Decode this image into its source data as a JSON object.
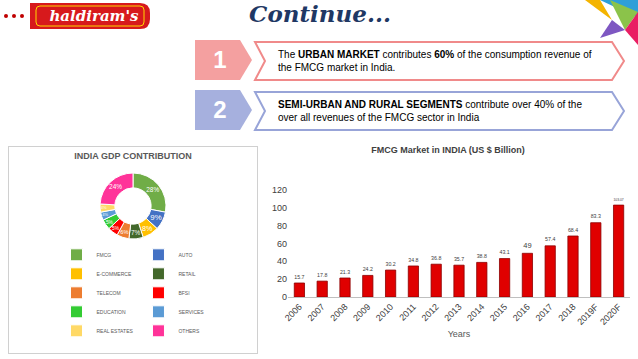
{
  "header": {
    "logo": "haldiram's",
    "title": "Continue..."
  },
  "points": [
    {
      "number": "1",
      "segments": [
        {
          "text": "The ",
          "bold": false
        },
        {
          "text": "URBAN MARKET",
          "bold": true
        },
        {
          "text": " contributes ",
          "bold": false
        },
        {
          "text": "60%",
          "bold": true
        },
        {
          "text": " of the consumption revenue of the FMCG market in India.",
          "bold": false
        }
      ]
    },
    {
      "number": "2",
      "segments": [
        {
          "text": "SEMI-URBAN AND RURAL SEGMENTS",
          "bold": true
        },
        {
          "text": " contribute over 40% of the over all revenues of the FMCG sector in India",
          "bold": false
        }
      ]
    }
  ],
  "chart_data": [
    {
      "type": "pie",
      "title": "INDIA GDP CONTRIBUTION",
      "categories": [
        "FMCG",
        "AUTO",
        "E-COMMERCE",
        "RETAIL",
        "TELECOM",
        "BFSI",
        "EDUCATION",
        "SERVICES",
        "REAL ESTATES",
        "OTHERS"
      ],
      "values": [
        28,
        9,
        8,
        7,
        6,
        5,
        5,
        4,
        4,
        24
      ],
      "value_labels": [
        "28%",
        "9%",
        "8%",
        "7%",
        "6%",
        "5%",
        "5%",
        "4%",
        "4%",
        "24%"
      ],
      "colors": [
        "#70ad47",
        "#4472c4",
        "#ffc000",
        "#43682b",
        "#ed7d31",
        "#ff0000",
        "#33cc33",
        "#5b9bd5",
        "#ffd966",
        "#ff3399"
      ],
      "data_labels": true,
      "legend": "bottom"
    },
    {
      "type": "bar",
      "title": "FMCG Market in INDIA (US $ Billion)",
      "x_label": "Years",
      "categories": [
        "2006",
        "2007",
        "2008",
        "2009",
        "2010",
        "2011",
        "2012",
        "2013",
        "2014",
        "2015",
        "2016",
        "2017",
        "2018",
        "2019F",
        "2020F"
      ],
      "values": [
        15.7,
        17.8,
        21.3,
        24.2,
        30.2,
        34.8,
        36.8,
        35.7,
        38.8,
        43.1,
        49,
        57.4,
        68.4,
        83.3,
        103.07
      ],
      "color": "#e00000",
      "ylim": [
        0,
        120
      ],
      "yticks": [
        0,
        20,
        40,
        60,
        80,
        100,
        120
      ],
      "grid": false,
      "data_labels": true
    }
  ]
}
